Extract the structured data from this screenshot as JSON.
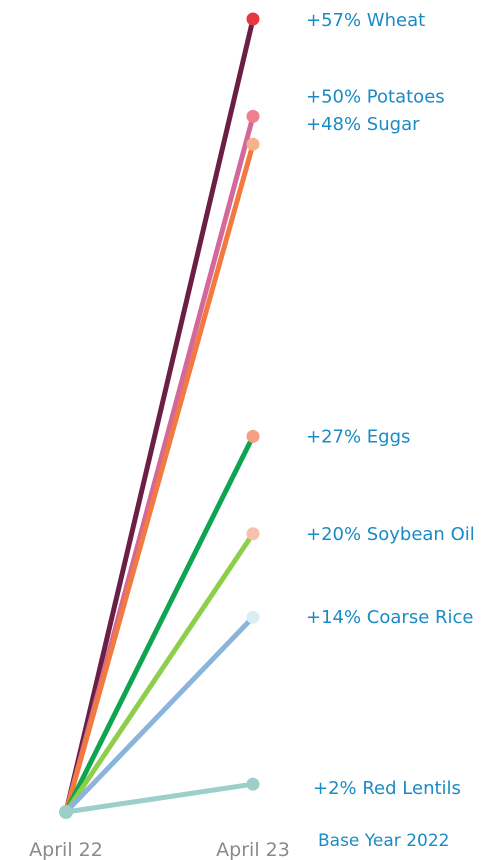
{
  "chart_data": {
    "type": "line",
    "x": [
      "April 22",
      "April 23"
    ],
    "ylim": [
      0,
      57
    ],
    "grid": false,
    "legend": "none",
    "label_color": "#1a8bc4",
    "base_note": "Base Year 2022",
    "series": [
      {
        "name": "Wheat",
        "values": [
          0,
          57
        ],
        "label": "+57% Wheat",
        "color": "#6b1f45",
        "end_color": "#e8383f"
      },
      {
        "name": "Potatoes",
        "values": [
          0,
          50
        ],
        "label": "+50% Potatoes",
        "color": "#d4689a",
        "end_color": "#f07f8e"
      },
      {
        "name": "Sugar",
        "values": [
          0,
          48
        ],
        "label": "+48% Sugar",
        "color": "#f2793f",
        "end_color": "#f8b28a"
      },
      {
        "name": "Eggs",
        "values": [
          0,
          27
        ],
        "label": "+27% Eggs",
        "color": "#0fa550",
        "end_color": "#f4a083"
      },
      {
        "name": "Soybean Oil",
        "values": [
          0,
          20
        ],
        "label": "+20% Soybean Oil",
        "color": "#8fce4a",
        "end_color": "#f8c0ac"
      },
      {
        "name": "Coarse Rice",
        "values": [
          0,
          14
        ],
        "label": "+14% Coarse Rice",
        "color": "#8ab4dc",
        "end_color": "#d9eef2"
      },
      {
        "name": "Red Lentils",
        "values": [
          0,
          2
        ],
        "label": "+2% Red Lentils",
        "color": "#9ccfca",
        "end_color": "#9ccfca"
      }
    ],
    "start_dot_color": "#9ccfca"
  }
}
